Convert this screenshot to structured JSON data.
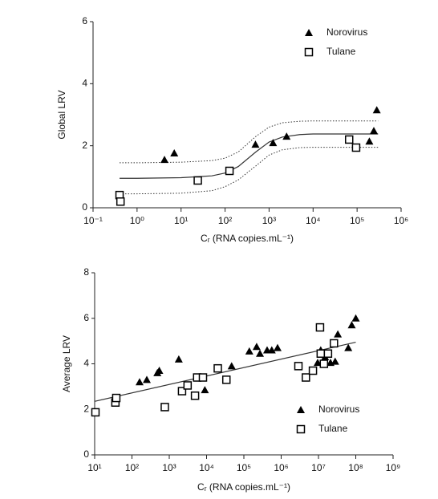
{
  "chart_data": [
    {
      "type": "scatter",
      "y_label": "Global LRV",
      "x_label": "Cᵣ (RNA copies.mL⁻¹)",
      "xlog": true,
      "xlim": [
        0.1,
        1000000
      ],
      "ylim": [
        0,
        6
      ],
      "xticks": [
        {
          "value": 0.1,
          "label": "10⁻¹"
        },
        {
          "value": 1,
          "label": "10⁰"
        },
        {
          "value": 10,
          "label": "10¹"
        },
        {
          "value": 100,
          "label": "10²"
        },
        {
          "value": 1000,
          "label": "10³"
        },
        {
          "value": 10000,
          "label": "10⁴"
        },
        {
          "value": 100000,
          "label": "10⁵"
        },
        {
          "value": 1000000,
          "label": "10⁶"
        }
      ],
      "yticks": [
        0,
        2,
        4,
        6
      ],
      "legend": "top-right",
      "series": [
        {
          "name": "Norovirus",
          "marker": "triangle",
          "color": "#000000",
          "x": [
            4.2,
            7,
            490,
            1230,
            2500,
            190000,
            240000,
            280000
          ],
          "values": [
            1.55,
            1.76,
            2.04,
            2.09,
            2.3,
            2.14,
            2.48,
            3.15
          ]
        },
        {
          "name": "Tulane",
          "marker": "square",
          "color": "#000000",
          "x": [
            0.4,
            0.42,
            24,
            126,
            66000,
            95000
          ],
          "values": [
            0.41,
            0.2,
            0.88,
            1.19,
            2.2,
            1.94
          ]
        }
      ],
      "fits": [
        {
          "style": "solid",
          "x": [
            0.4,
            1,
            10,
            50,
            100,
            200,
            500,
            1000,
            2000,
            5000,
            10000,
            100000,
            300000
          ],
          "values": [
            0.95,
            0.95,
            0.97,
            1.03,
            1.12,
            1.33,
            1.8,
            2.12,
            2.28,
            2.36,
            2.38,
            2.38,
            2.38
          ]
        },
        {
          "style": "dotted",
          "x": [
            0.4,
            1,
            10,
            50,
            100,
            200,
            500,
            1000,
            2000,
            5000,
            10000,
            100000,
            300000
          ],
          "values": [
            0.45,
            0.45,
            0.47,
            0.55,
            0.68,
            0.9,
            1.35,
            1.7,
            1.87,
            1.94,
            1.95,
            1.95,
            1.95
          ]
        },
        {
          "style": "dotted",
          "x": [
            0.4,
            1,
            10,
            50,
            100,
            200,
            500,
            1000,
            2000,
            5000,
            10000,
            100000,
            300000
          ],
          "values": [
            1.45,
            1.45,
            1.47,
            1.52,
            1.6,
            1.8,
            2.3,
            2.6,
            2.74,
            2.79,
            2.8,
            2.8,
            2.8
          ]
        }
      ]
    },
    {
      "type": "scatter",
      "y_label": "Average LRV",
      "x_label": "Cᵣ (RNA copies.mL⁻¹)",
      "xlog": true,
      "xlim": [
        10,
        1000000000
      ],
      "ylim": [
        0,
        8
      ],
      "xticks": [
        {
          "value": 10,
          "label": "10¹"
        },
        {
          "value": 100,
          "label": "10²"
        },
        {
          "value": 1000,
          "label": "10³"
        },
        {
          "value": 10000,
          "label": "10⁴"
        },
        {
          "value": 100000,
          "label": "10⁵"
        },
        {
          "value": 1000000,
          "label": "10⁶"
        },
        {
          "value": 10000000,
          "label": "10⁷"
        },
        {
          "value": 100000000,
          "label": "10⁸"
        },
        {
          "value": 1000000000,
          "label": "10⁹"
        }
      ],
      "yticks": [
        0,
        2,
        4,
        6,
        8
      ],
      "legend": "bottom-right",
      "series": [
        {
          "name": "Norovirus",
          "marker": "triangle",
          "color": "#000000",
          "x": [
            160,
            250,
            480,
            540,
            1800,
            9000,
            47000,
            140000,
            220000,
            270000,
            420000,
            560000,
            800000,
            9500000,
            11500000,
            15000000,
            21000000,
            28000000,
            33000000,
            63000000,
            78000000,
            100000000
          ],
          "values": [
            3.2,
            3.3,
            3.6,
            3.7,
            4.2,
            2.85,
            3.9,
            4.55,
            4.75,
            4.45,
            4.6,
            4.6,
            4.7,
            4.05,
            4.6,
            4.3,
            4.05,
            4.1,
            5.3,
            4.7,
            5.7,
            6.0
          ]
        },
        {
          "name": "Tulane",
          "marker": "square",
          "color": "#000000",
          "x": [
            10.5,
            36,
            38,
            760,
            2200,
            3100,
            4900,
            5600,
            8000,
            20000,
            34000,
            2900000,
            4600000,
            7100000,
            11000000,
            11500000,
            14000000,
            18000000,
            26000000
          ],
          "values": [
            1.87,
            2.3,
            2.5,
            2.1,
            2.8,
            3.05,
            2.6,
            3.4,
            3.4,
            3.8,
            3.3,
            3.9,
            3.4,
            3.7,
            5.6,
            4.45,
            4.0,
            4.45,
            4.9
          ]
        }
      ],
      "fits": [
        {
          "style": "solid",
          "x": [
            10,
            100000000
          ],
          "values": [
            2.35,
            4.95
          ]
        }
      ]
    }
  ]
}
